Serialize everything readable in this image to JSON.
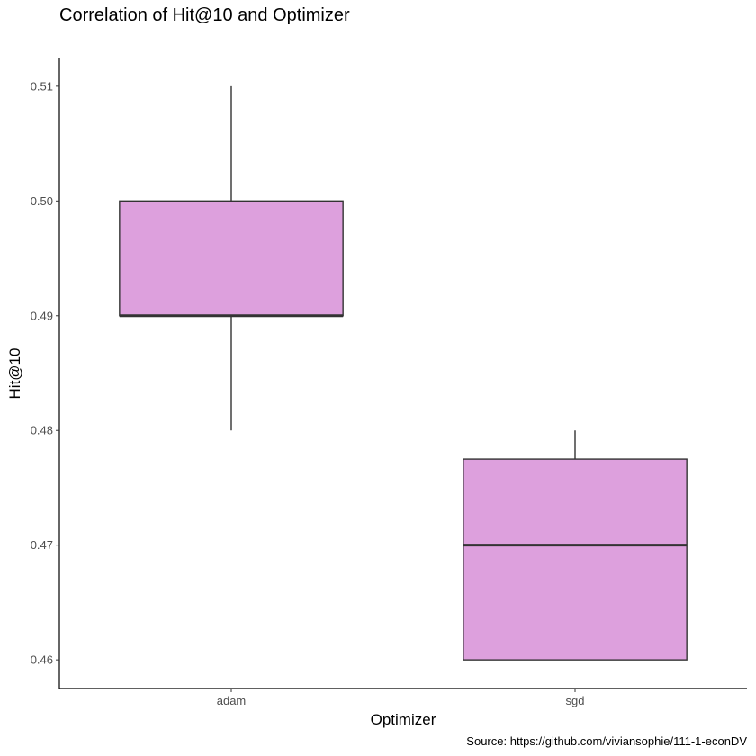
{
  "chart_data": {
    "type": "boxplot",
    "title": "Correlation of Hit@10 and Optimizer",
    "xlabel": "Optimizer",
    "ylabel": "Hit@10",
    "caption": "Source: https://github.com/viviansophie/111-1-econDV",
    "categories": [
      "adam",
      "sgd"
    ],
    "boxes": [
      {
        "category": "adam",
        "min": 0.48,
        "q1": 0.49,
        "median": 0.49,
        "q3": 0.5,
        "max": 0.51
      },
      {
        "category": "sgd",
        "min": 0.46,
        "q1": 0.46,
        "median": 0.47,
        "q3": 0.4775,
        "max": 0.48
      }
    ],
    "y_ticks": [
      "0.46",
      "0.47",
      "0.48",
      "0.49",
      "0.50",
      "0.51"
    ],
    "ylim": [
      0.4575,
      0.5125
    ],
    "grid": false,
    "legend": "none",
    "colors": {
      "box_fill": "#dda0dd",
      "box_stroke": "#333333",
      "axis": "#000000"
    }
  }
}
